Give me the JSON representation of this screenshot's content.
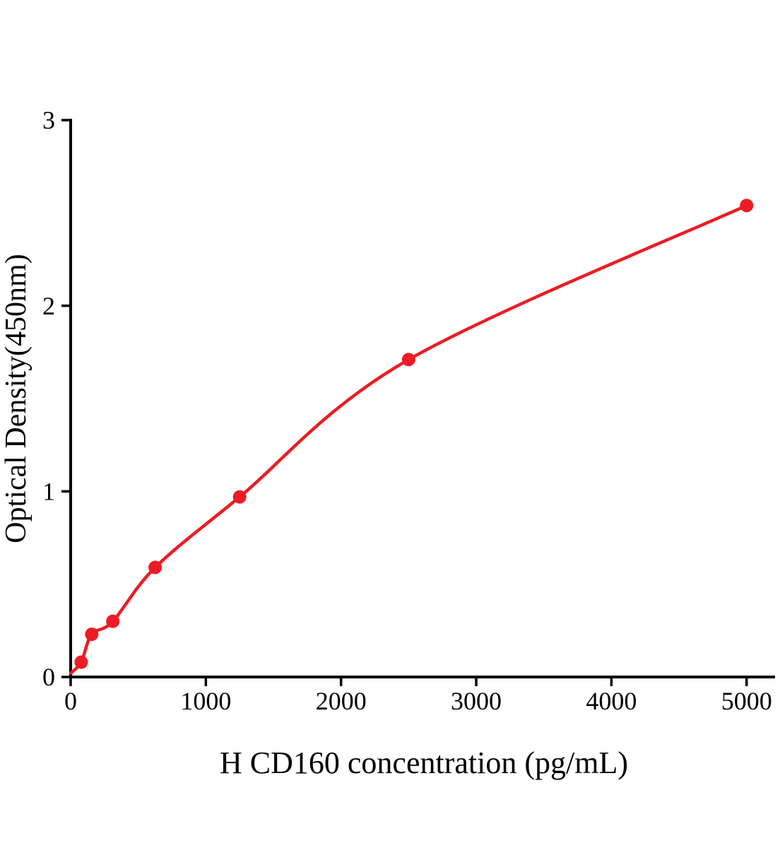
{
  "chart": {
    "xlabel": "H CD160 concentration (pg/mL)",
    "ylabel": "Optical Density(450nm)",
    "axis_color": "#000000",
    "background_color": "#ffffff",
    "accent_color": "#ec1c24"
  },
  "chart_data": {
    "type": "scatter",
    "title": "",
    "xlabel": "H CD160 concentration (pg/mL)",
    "ylabel": "Optical Density(450nm)",
    "x": [
      78,
      156,
      312,
      625,
      1250,
      2500,
      5000
    ],
    "y": [
      0.08,
      0.23,
      0.3,
      0.59,
      0.97,
      1.71,
      2.54
    ],
    "curve_start": {
      "x": 0,
      "y": 0.02
    },
    "curve_type": "saturating-fit",
    "xlim": [
      0,
      5200
    ],
    "ylim": [
      0,
      3
    ],
    "xticks": [
      0,
      1000,
      2000,
      3000,
      4000,
      5000
    ],
    "yticks": [
      0,
      1,
      2,
      3
    ],
    "grid": false,
    "legend": null,
    "marker_color": "#ec1c24",
    "line_color": "#ec1c24"
  }
}
